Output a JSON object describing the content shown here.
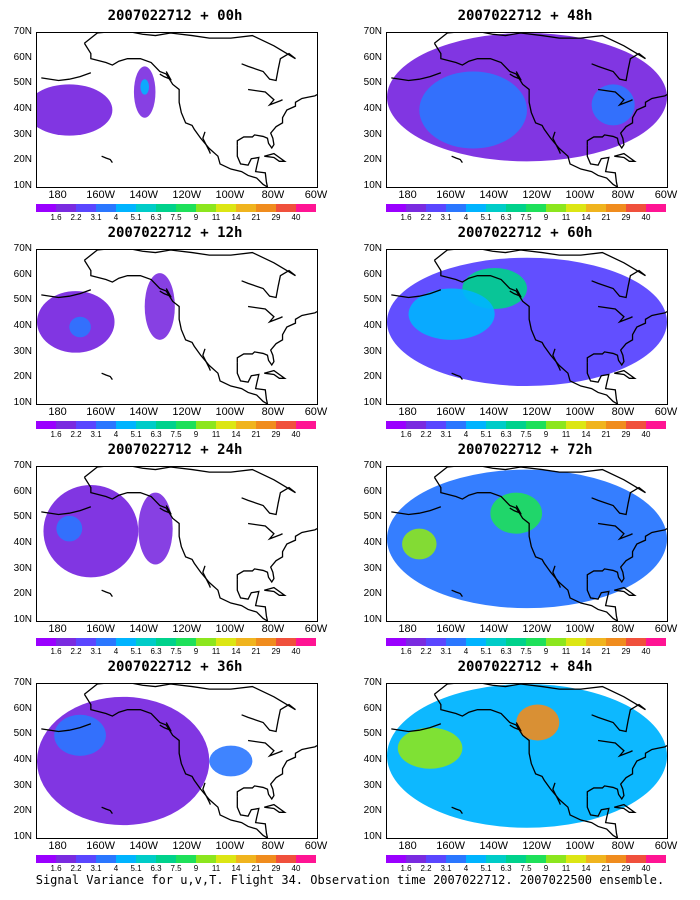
{
  "caption": "Signal Variance for u,v,T. Flight 34. Observation time 2007022712. 2007022500 ensemble.",
  "panel_titles": [
    "2007022712 + 00h",
    "2007022712 + 48h",
    "2007022712 + 12h",
    "2007022712 + 60h",
    "2007022712 + 24h",
    "2007022712 + 72h",
    "2007022712 + 36h",
    "2007022712 + 84h"
  ],
  "lat_labels": [
    "70N",
    "60N",
    "50N",
    "40N",
    "30N",
    "20N",
    "10N"
  ],
  "lon_labels": [
    "180",
    "160W",
    "140W",
    "120W",
    "100W",
    "80W",
    "60W"
  ],
  "colorbar_labels": [
    "1.6",
    "2.2",
    "3.1",
    "4",
    "5.1",
    "6.3",
    "7.5",
    "9",
    "11",
    "14",
    "21",
    "29",
    "40"
  ],
  "colorbar_colors": [
    "#9a00ff",
    "#7a2be0",
    "#5a46ff",
    "#2a77ff",
    "#00b4ff",
    "#00ccc8",
    "#00d28c",
    "#1ee05a",
    "#8ce61e",
    "#dce614",
    "#f0b41e",
    "#f08c1e",
    "#f0503c",
    "#ff1493"
  ],
  "chart_data": {
    "type": "heatmap",
    "variable": "Signal Variance for u,v,T",
    "flight": "34",
    "observation_time": "2007022712",
    "ensemble": "2007022500",
    "lon_range": [
      -190,
      -60
    ],
    "lat_range": [
      10,
      70
    ],
    "lead_times_h": [
      0,
      12,
      24,
      36,
      48,
      60,
      72,
      84
    ],
    "colorbar_levels": [
      1.6,
      2.2,
      3.1,
      4,
      5.1,
      6.3,
      7.5,
      9,
      11,
      14,
      21,
      29,
      40
    ],
    "panels": [
      {
        "lead": "00h",
        "blobs": [
          {
            "lon": -175,
            "lat": 40,
            "rx": 20,
            "ry": 10,
            "level": 1
          },
          {
            "lon": -140,
            "lat": 47,
            "rx": 5,
            "ry": 10,
            "level": 1
          },
          {
            "lon": -140,
            "lat": 49,
            "rx": 2,
            "ry": 3,
            "level": 4
          }
        ]
      },
      {
        "lead": "48h",
        "blobs": [
          {
            "lon": -125,
            "lat": 45,
            "rx": 65,
            "ry": 25,
            "level": 1
          },
          {
            "lon": -150,
            "lat": 40,
            "rx": 25,
            "ry": 15,
            "level": 3
          },
          {
            "lon": -85,
            "lat": 42,
            "rx": 10,
            "ry": 8,
            "level": 3
          }
        ]
      },
      {
        "lead": "12h",
        "blobs": [
          {
            "lon": -172,
            "lat": 42,
            "rx": 18,
            "ry": 12,
            "level": 1
          },
          {
            "lon": -133,
            "lat": 48,
            "rx": 7,
            "ry": 13,
            "level": 1
          },
          {
            "lon": -170,
            "lat": 40,
            "rx": 5,
            "ry": 4,
            "level": 3
          }
        ]
      },
      {
        "lead": "60h",
        "blobs": [
          {
            "lon": -125,
            "lat": 42,
            "rx": 65,
            "ry": 25,
            "level": 2
          },
          {
            "lon": -140,
            "lat": 55,
            "rx": 15,
            "ry": 8,
            "level": 6
          },
          {
            "lon": -160,
            "lat": 45,
            "rx": 20,
            "ry": 10,
            "level": 4
          }
        ]
      },
      {
        "lead": "24h",
        "blobs": [
          {
            "lon": -165,
            "lat": 45,
            "rx": 22,
            "ry": 18,
            "level": 1
          },
          {
            "lon": -135,
            "lat": 46,
            "rx": 8,
            "ry": 14,
            "level": 1
          },
          {
            "lon": -175,
            "lat": 46,
            "rx": 6,
            "ry": 5,
            "level": 3
          }
        ]
      },
      {
        "lead": "72h",
        "blobs": [
          {
            "lon": -125,
            "lat": 42,
            "rx": 65,
            "ry": 27,
            "level": 3
          },
          {
            "lon": -130,
            "lat": 52,
            "rx": 12,
            "ry": 8,
            "level": 7
          },
          {
            "lon": -175,
            "lat": 40,
            "rx": 8,
            "ry": 6,
            "level": 8
          }
        ]
      },
      {
        "lead": "36h",
        "blobs": [
          {
            "lon": -150,
            "lat": 40,
            "rx": 40,
            "ry": 25,
            "level": 1
          },
          {
            "lon": -170,
            "lat": 50,
            "rx": 12,
            "ry": 8,
            "level": 3
          },
          {
            "lon": -100,
            "lat": 40,
            "rx": 10,
            "ry": 6,
            "level": 3
          }
        ]
      },
      {
        "lead": "84h",
        "blobs": [
          {
            "lon": -125,
            "lat": 42,
            "rx": 65,
            "ry": 28,
            "level": 4
          },
          {
            "lon": -120,
            "lat": 55,
            "rx": 10,
            "ry": 7,
            "level": 11
          },
          {
            "lon": -170,
            "lat": 45,
            "rx": 15,
            "ry": 8,
            "level": 8
          }
        ]
      }
    ]
  }
}
